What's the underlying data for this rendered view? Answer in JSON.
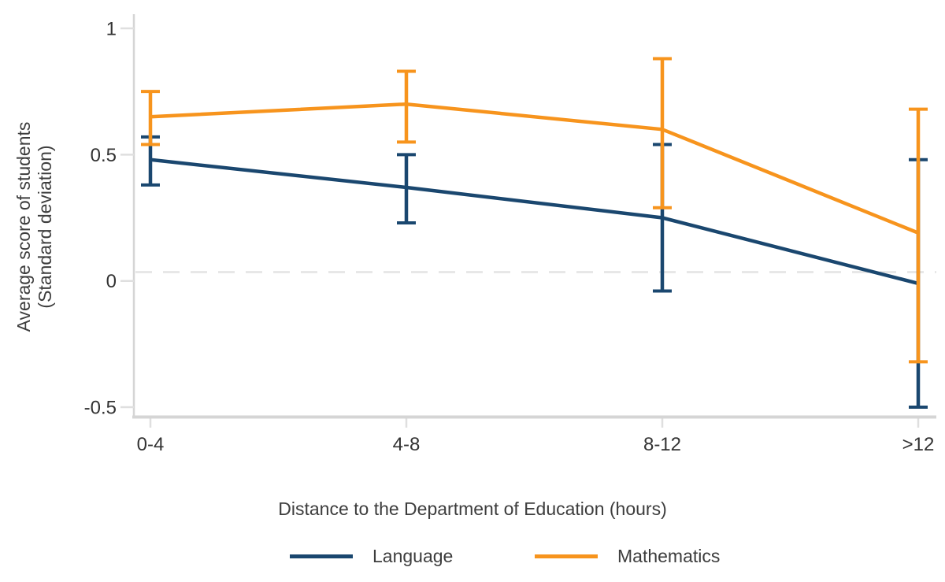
{
  "chart_data": {
    "type": "line",
    "title": "",
    "xlabel": "Distance to the Department of Education (hours)",
    "ylabel_lines": [
      "Average score of students",
      "(Standard deviation)"
    ],
    "categories": [
      "0-4",
      "4-8",
      "8-12",
      ">12"
    ],
    "y_ticks": [
      1,
      0.5,
      0,
      -0.5
    ],
    "y_tick_labels": [
      "1",
      "0.5",
      "0",
      "-0.5"
    ],
    "ylim": [
      -0.56,
      1.07
    ],
    "grid": false,
    "legend_position": "bottom",
    "error_bars": true,
    "reference_line": {
      "value": 0.035,
      "style": "dashed"
    },
    "series": [
      {
        "name": "Language",
        "color": "#1A476F",
        "values": [
          0.48,
          0.37,
          0.25,
          -0.01
        ],
        "ci_low": [
          0.38,
          0.23,
          -0.04,
          -0.5
        ],
        "ci_high": [
          0.57,
          0.5,
          0.54,
          0.48
        ]
      },
      {
        "name": "Mathematics",
        "color": "#F7941D",
        "values": [
          0.65,
          0.7,
          0.6,
          0.19
        ],
        "ci_low": [
          0.54,
          0.55,
          0.29,
          -0.32
        ],
        "ci_high": [
          0.75,
          0.83,
          0.88,
          0.68
        ]
      }
    ],
    "axis_colors": {
      "spine": "#D5D5D5",
      "tick": "#DFDFDF",
      "tick_label": "#333333",
      "ref_line": "#E3E3E3"
    }
  }
}
